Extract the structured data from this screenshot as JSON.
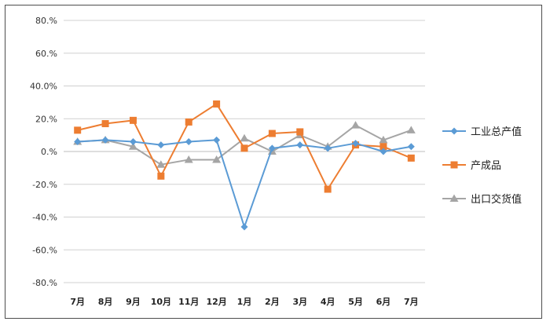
{
  "chart_data": {
    "type": "line",
    "categories": [
      "7月",
      "8月",
      "9月",
      "10月",
      "11月",
      "12月",
      "1月",
      "2月",
      "3月",
      "4月",
      "5月",
      "6月",
      "7月"
    ],
    "ylim": [
      -80,
      80
    ],
    "ytick_labels": [
      "80.%",
      "60.%",
      "40.0%",
      "20.%",
      "0.%",
      "-20.%",
      "-40.%",
      "-60.%",
      "-80.%"
    ],
    "ytick_values": [
      80,
      60,
      40,
      20,
      0,
      -20,
      -40,
      -60,
      -80
    ],
    "grid": "horizontal",
    "legend_position": "right",
    "series": [
      {
        "name": "工业总产值",
        "color": "#5b9bd5",
        "marker": "diamond",
        "values": [
          6,
          7,
          6,
          4,
          6,
          7,
          -46,
          2,
          4,
          2,
          5,
          0,
          3
        ]
      },
      {
        "name": "产成品",
        "color": "#ed7d31",
        "marker": "square",
        "values": [
          13,
          17,
          19,
          -15,
          18,
          29,
          2,
          11,
          12,
          -23,
          4,
          3,
          -4
        ]
      },
      {
        "name": "出口交货值",
        "color": "#a5a5a5",
        "marker": "triangle",
        "values": [
          6,
          7,
          3,
          -8,
          -5,
          -5,
          8,
          0,
          10,
          3,
          16,
          7,
          13
        ]
      }
    ]
  }
}
